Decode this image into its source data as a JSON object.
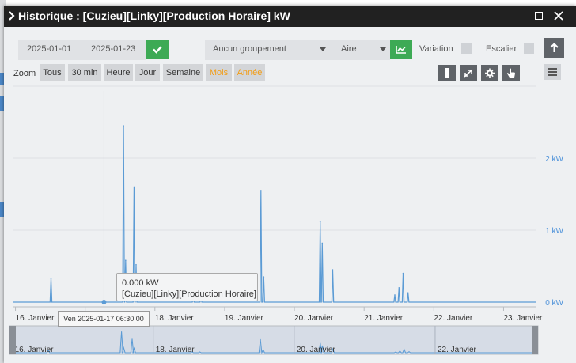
{
  "window": {
    "title": "Historique : [Cuzieu][Linky][Production Horaire] kW"
  },
  "toolbar": {
    "date_from": "2025-01-01",
    "date_to": "2025-01-23",
    "grouping": "Aucun groupement",
    "chart_type": "Aire",
    "variation_label": "Variation",
    "escalier_label": "Escalier"
  },
  "zoom": {
    "label": "Zoom",
    "buttons": [
      "Tous",
      "30 min",
      "Heure",
      "Jour",
      "Semaine",
      "Mois",
      "Année"
    ],
    "active_buttons": [
      "Mois",
      "Année"
    ]
  },
  "colors": {
    "series": "#5b9bd5",
    "accent_green": "#3daa55",
    "zoom_active": "#f39c12",
    "axis_label": "#4a90d9"
  },
  "chart_data": {
    "type": "area",
    "series": [
      {
        "name": "[Cuzieu][Linky][Production Horaire]"
      }
    ],
    "y_ticks": [
      "0 kW",
      "1 kW",
      "2 kW"
    ],
    "ylim": [
      0,
      3
    ],
    "x_ticks": [
      "16. Janvier",
      "17. Janvier",
      "18. Janvier",
      "19. Janvier",
      "20. Janvier",
      "21. Janvier",
      "22. Janvier",
      "23. Janvier"
    ],
    "x_tick_days": [
      16,
      17,
      18,
      19,
      20,
      21,
      22,
      23
    ],
    "xlim": [
      15.96,
      23.46
    ],
    "peaks": [
      {
        "day": 16.51,
        "value": 0.33
      },
      {
        "day": 17.55,
        "value": 2.45
      },
      {
        "day": 17.58,
        "value": 0.58
      },
      {
        "day": 17.7,
        "value": 1.6
      },
      {
        "day": 17.73,
        "value": 0.52
      },
      {
        "day": 18.55,
        "value": 0.12
      },
      {
        "day": 18.66,
        "value": 0.1
      },
      {
        "day": 19.52,
        "value": 1.55
      },
      {
        "day": 19.56,
        "value": 0.35
      },
      {
        "day": 20.37,
        "value": 1.12
      },
      {
        "day": 20.4,
        "value": 0.82
      },
      {
        "day": 20.55,
        "value": 0.45
      },
      {
        "day": 21.44,
        "value": 0.1
      },
      {
        "day": 21.5,
        "value": 0.2
      },
      {
        "day": 21.56,
        "value": 0.4
      },
      {
        "day": 21.63,
        "value": 0.13
      }
    ],
    "tooltip": {
      "value": "0.000 kW",
      "series": "[Cuzieu][Linky][Production Horaire]"
    },
    "crosshair_label": "Ven 2025-01-17 06:30:00",
    "navigator": {
      "labels": [
        "16. Janvier",
        "18. Janvier",
        "20. Janvier",
        "22. Janvier"
      ],
      "label_days": [
        16,
        18,
        20,
        22
      ]
    }
  }
}
